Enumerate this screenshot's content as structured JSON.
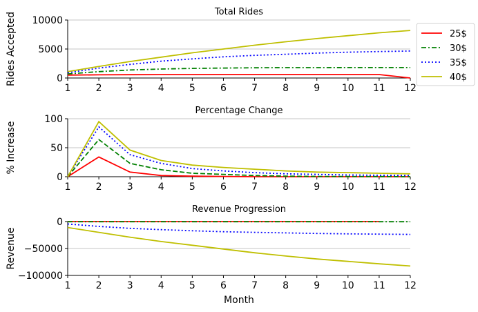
{
  "chart_data": [
    {
      "type": "line",
      "title": "Total Rides",
      "xlabel": "",
      "ylabel": "Rides Accepted",
      "x": [
        1,
        2,
        3,
        4,
        5,
        6,
        7,
        8,
        9,
        10,
        11,
        12
      ],
      "xlim": [
        1,
        12
      ],
      "ylim": [
        0,
        10000
      ],
      "yticks": [
        0,
        5000,
        10000
      ],
      "ytick_labels": [
        "0",
        "5000",
        "10000"
      ],
      "grid": "y",
      "legend": "outside-right",
      "series": [
        {
          "name": "25$",
          "color": "#ff0000",
          "style": "solid",
          "values": [
            500,
            550,
            570,
            580,
            585,
            590,
            590,
            590,
            590,
            590,
            590,
            0
          ]
        },
        {
          "name": "30$",
          "color": "#008000",
          "style": "dashdot",
          "values": [
            700,
            1100,
            1380,
            1550,
            1650,
            1720,
            1760,
            1780,
            1790,
            1795,
            1800,
            1800
          ]
        },
        {
          "name": "35$",
          "color": "#0000ff",
          "style": "dotted",
          "values": [
            900,
            1700,
            2350,
            2900,
            3300,
            3650,
            3900,
            4100,
            4300,
            4450,
            4560,
            4650
          ]
        },
        {
          "name": "40$",
          "color": "#bfbf00",
          "style": "solid",
          "values": [
            1100,
            2000,
            2850,
            3600,
            4350,
            5000,
            5650,
            6250,
            6800,
            7300,
            7800,
            8200
          ]
        }
      ]
    },
    {
      "type": "line",
      "title": "Percentage Change",
      "xlabel": "",
      "ylabel": "% Increase",
      "x": [
        1,
        2,
        3,
        4,
        5,
        6,
        7,
        8,
        9,
        10,
        11,
        12
      ],
      "xlim": [
        1,
        12
      ],
      "ylim": [
        0,
        100
      ],
      "yticks": [
        0,
        50,
        100
      ],
      "ytick_labels": [
        "0",
        "50",
        "100"
      ],
      "grid": "y",
      "series": [
        {
          "name": "25$",
          "color": "#ff0000",
          "style": "solid",
          "values": [
            0,
            34,
            8,
            2,
            1,
            0.5,
            0,
            0,
            0,
            0,
            0,
            0
          ]
        },
        {
          "name": "30$",
          "color": "#008000",
          "style": "dashed",
          "values": [
            0,
            64,
            23,
            12,
            6,
            4,
            2,
            1,
            0.5,
            0.3,
            0.2,
            0
          ]
        },
        {
          "name": "35$",
          "color": "#0000ff",
          "style": "dotted",
          "values": [
            0,
            86,
            38,
            23,
            14,
            10,
            7,
            5,
            4,
            3,
            2.5,
            2
          ]
        },
        {
          "name": "40$",
          "color": "#bfbf00",
          "style": "solid",
          "values": [
            0,
            95,
            46,
            28,
            20,
            16,
            13,
            10,
            8,
            7,
            6,
            5
          ]
        }
      ]
    },
    {
      "type": "line",
      "title": "Revenue Progression",
      "xlabel": "Month",
      "ylabel": "Revenue",
      "x": [
        1,
        2,
        3,
        4,
        5,
        6,
        7,
        8,
        9,
        10,
        11,
        12
      ],
      "xlim": [
        1,
        12
      ],
      "ylim": [
        -100000,
        0
      ],
      "yticks": [
        -100000,
        -50000,
        0
      ],
      "ytick_labels": [
        "−100000",
        "−50000",
        "0"
      ],
      "grid": "y",
      "series": [
        {
          "name": "25$",
          "color": "#ff0000",
          "style": "solid",
          "values": [
            0,
            500,
            700,
            800,
            900,
            950,
            1000,
            1000,
            1000,
            1000,
            1000,
            null
          ]
        },
        {
          "name": "30$",
          "color": "#008000",
          "style": "dashdot",
          "values": [
            -200,
            -200,
            -200,
            -200,
            -200,
            -200,
            -200,
            -200,
            -200,
            -200,
            -200,
            -200
          ]
        },
        {
          "name": "35$",
          "color": "#0000ff",
          "style": "dotted",
          "values": [
            -4500,
            -9000,
            -12500,
            -15000,
            -17000,
            -18800,
            -20000,
            -21000,
            -22000,
            -22800,
            -23300,
            -23800
          ]
        },
        {
          "name": "40$",
          "color": "#bfbf00",
          "style": "solid",
          "values": [
            -11000,
            -20000,
            -29000,
            -37000,
            -44000,
            -51000,
            -58000,
            -64000,
            -69500,
            -74000,
            -78500,
            -82500
          ]
        }
      ]
    }
  ],
  "legend": [
    {
      "label": "25$",
      "color": "#ff0000",
      "style": "solid"
    },
    {
      "label": "30$",
      "color": "#008000",
      "style": "dashdot"
    },
    {
      "label": "35$",
      "color": "#0000ff",
      "style": "dotted"
    },
    {
      "label": "40$",
      "color": "#bfbf00",
      "style": "solid"
    }
  ]
}
